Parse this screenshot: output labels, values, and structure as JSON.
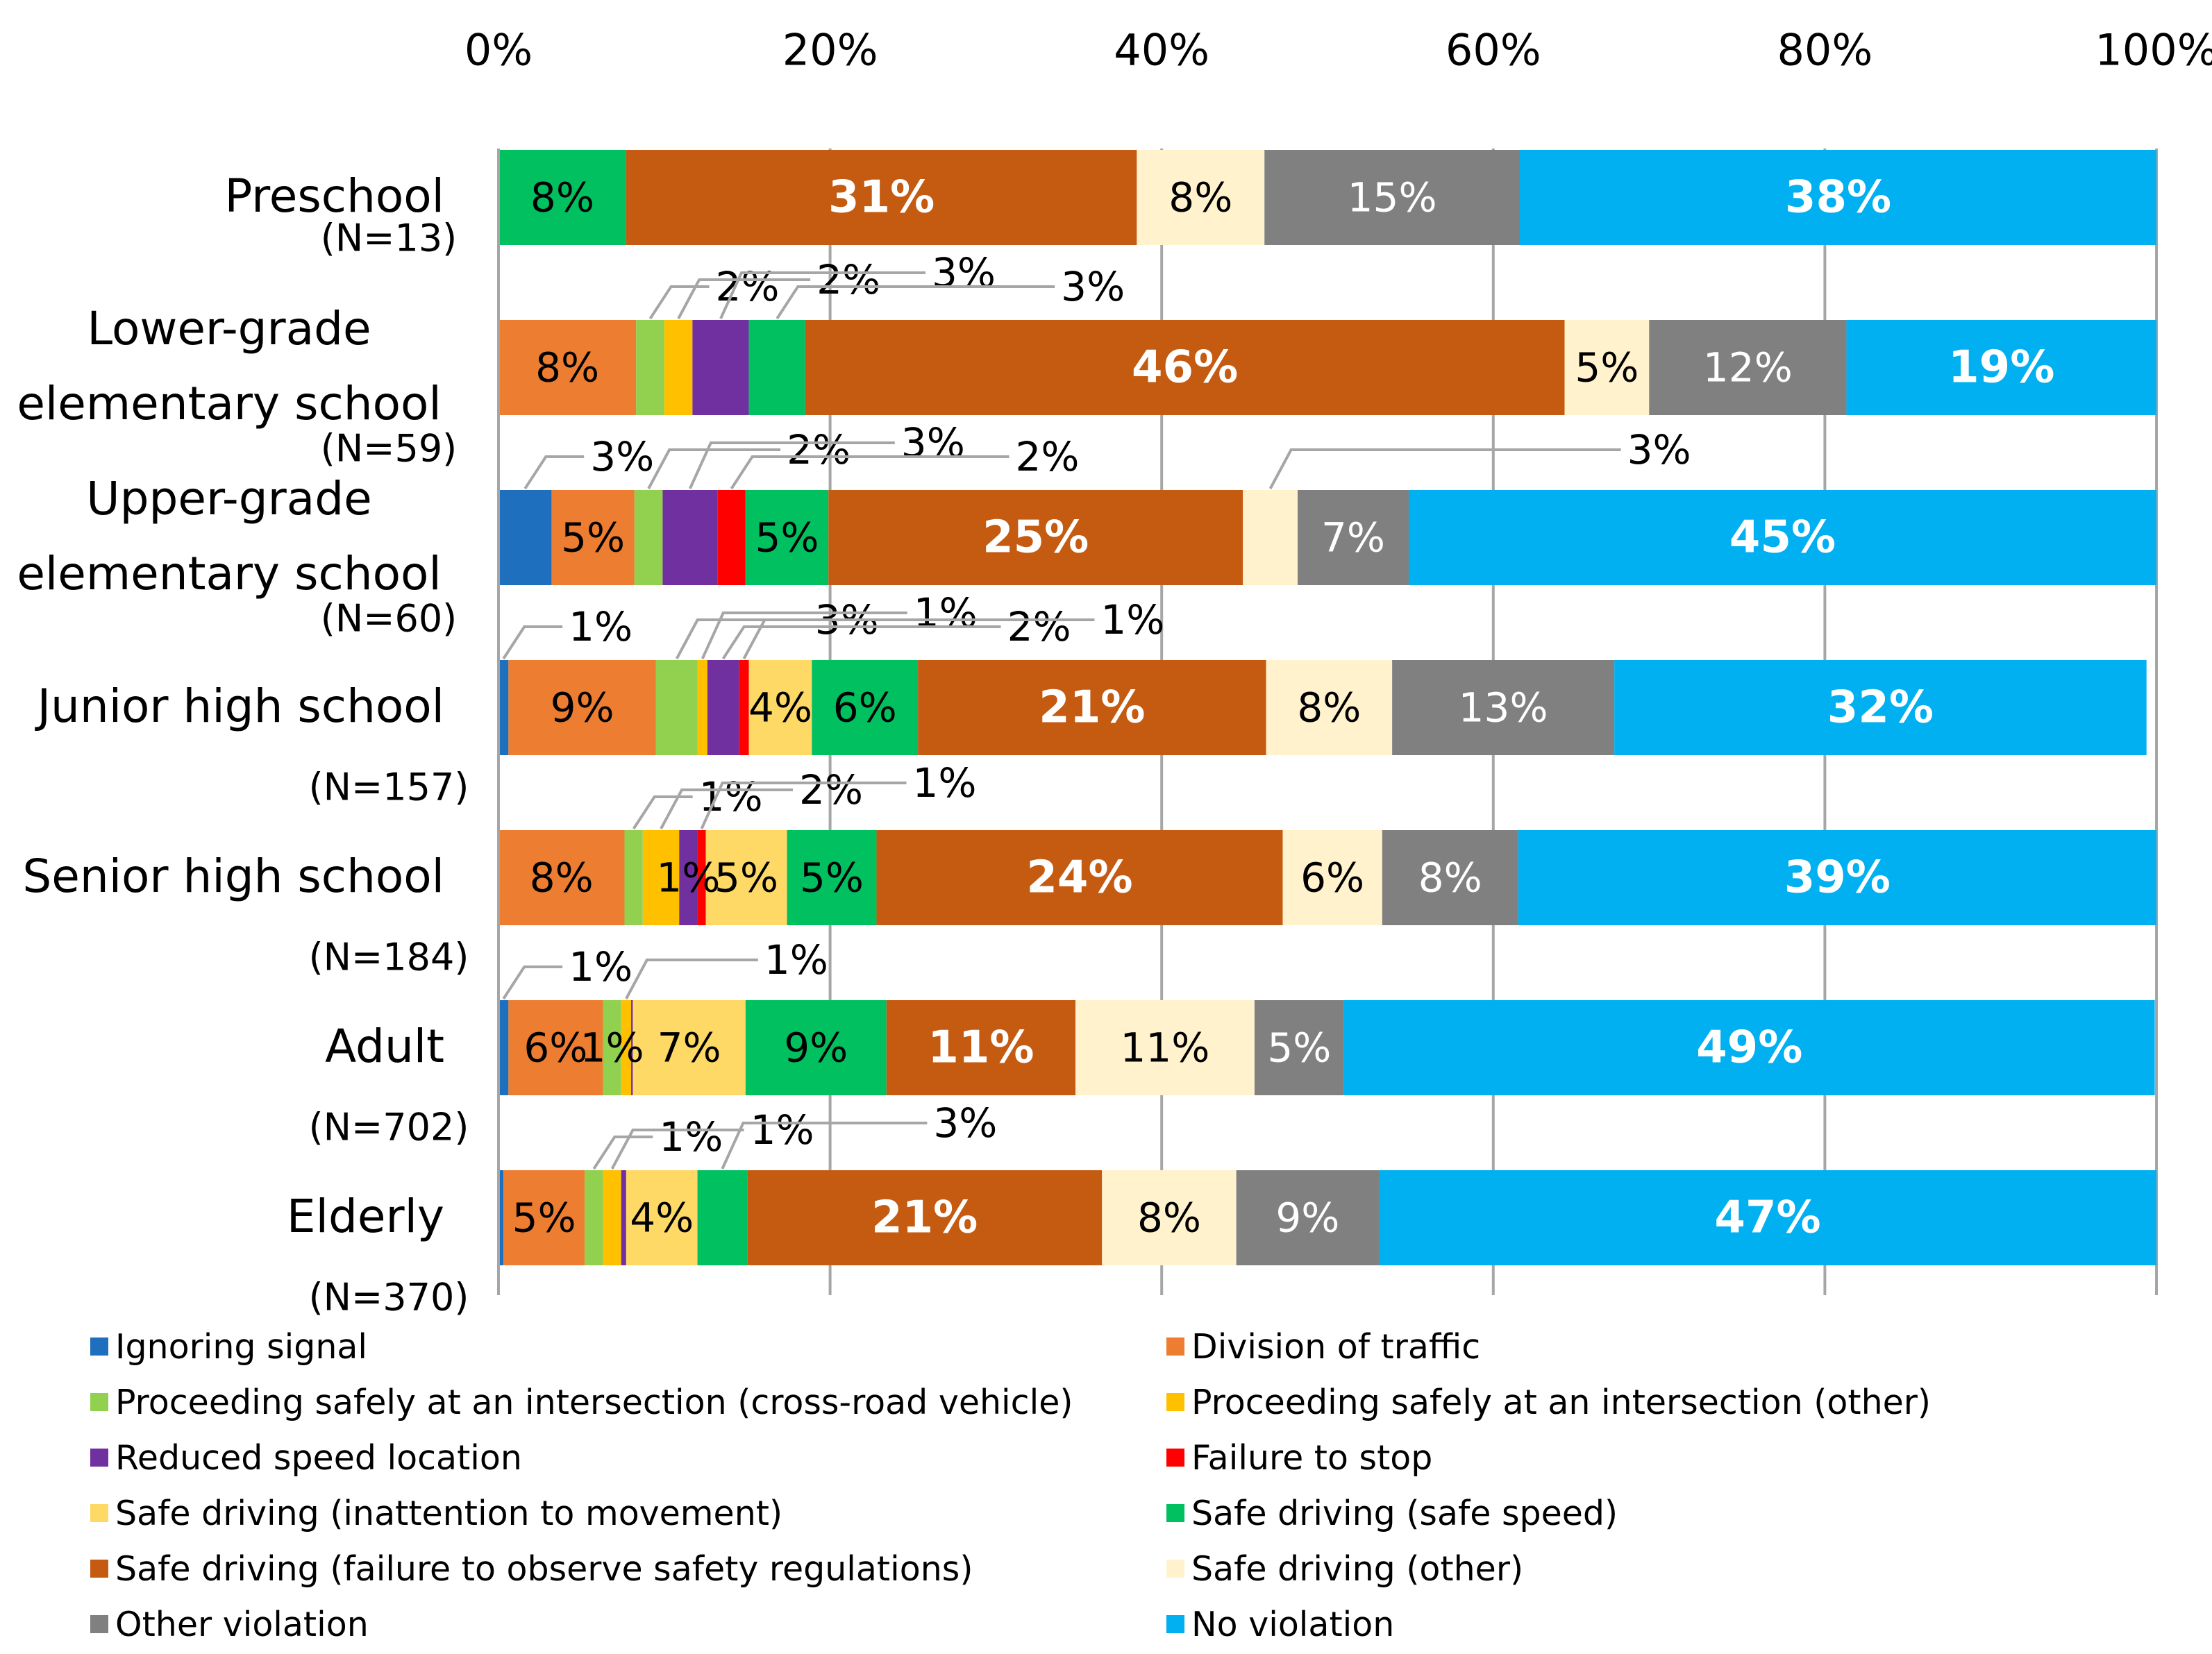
{
  "chart_data": {
    "type": "bar",
    "orientation": "horizontal",
    "stacked": "percent",
    "title": "",
    "xlabel": "",
    "ylabel": "",
    "xlim": [
      0,
      100
    ],
    "x_ticks": [
      "0%",
      "20%",
      "40%",
      "60%",
      "80%",
      "100%"
    ],
    "grid": true,
    "legend_position": "bottom",
    "categories": [
      {
        "name": "Preschool",
        "n": "(N=13)"
      },
      {
        "name": "Lower-grade elementary school",
        "n": "(N=59)"
      },
      {
        "name": "Upper-grade elementary school",
        "n": "(N=60)"
      },
      {
        "name": "Junior high school",
        "n": "(N=157)"
      },
      {
        "name": "Senior high school",
        "n": "(N=184)"
      },
      {
        "name": "Adult",
        "n": "(N=702)"
      },
      {
        "name": "Elderly",
        "n": "(N=370)"
      }
    ],
    "category_lines": [
      [
        "Preschool"
      ],
      [
        "Lower-grade",
        "elementary school"
      ],
      [
        "Upper-grade",
        "elementary school"
      ],
      [
        "Junior high school"
      ],
      [
        "Senior high school"
      ],
      [
        "Adult"
      ],
      [
        "Elderly"
      ]
    ],
    "series": [
      {
        "name": "Ignoring signal",
        "color": "#1F6FBF",
        "values": [
          0,
          0,
          3.2,
          0.6,
          0,
          0.6,
          0.3
        ],
        "labels": [
          "",
          "",
          "3%",
          "1%",
          "",
          "",
          ""
        ]
      },
      {
        "name": "Division of traffic",
        "color": "#ED7D31",
        "values": [
          0,
          8.3,
          5.0,
          8.9,
          7.6,
          5.7,
          4.9
        ],
        "labels": [
          "",
          "8%",
          "5%",
          "9%",
          "8%",
          "6%",
          "5%"
        ]
      },
      {
        "name": "Proceeding safely at an intersection (cross-road vehicle)",
        "color": "#92D050",
        "values": [
          0,
          1.7,
          1.7,
          2.5,
          1.1,
          1.1,
          1.1
        ],
        "labels": [
          "",
          "2%",
          "2%",
          "3%",
          "1%",
          "1%",
          "1%"
        ]
      },
      {
        "name": "Proceeding safely at an intersection (other)",
        "color": "#FFC000",
        "values": [
          0,
          1.7,
          0,
          0.6,
          2.2,
          0.6,
          1.1
        ],
        "labels": [
          "",
          "2%",
          "",
          "1%",
          "2%",
          "1%",
          "1%"
        ]
      },
      {
        "name": "Reduced speed location",
        "color": "#7030A0",
        "values": [
          0,
          3.4,
          3.3,
          1.9,
          1.1,
          0.1,
          0.3
        ],
        "labels": [
          "",
          "3%",
          "3%",
          "2%",
          "1%",
          "",
          ""
        ]
      },
      {
        "name": "Failure to stop",
        "color": "#FF0000",
        "values": [
          0,
          0,
          1.7,
          0.6,
          0.5,
          0,
          0
        ],
        "labels": [
          "",
          "",
          "2%",
          "1%",
          "1%",
          "",
          ""
        ]
      },
      {
        "name": "Safe driving (inattention to movement)",
        "color": "#FFD966",
        "values": [
          0,
          0,
          0,
          3.8,
          4.9,
          6.8,
          4.3
        ],
        "labels": [
          "",
          "",
          "",
          "4%",
          "5%",
          "7%",
          "4%"
        ]
      },
      {
        "name": "Safe driving (safe speed)",
        "color": "#00C060",
        "values": [
          7.7,
          3.4,
          5.0,
          6.4,
          5.4,
          8.5,
          3.0
        ],
        "labels": [
          "8%",
          "3%",
          "5%",
          "6%",
          "5%",
          "9%",
          "3%"
        ]
      },
      {
        "name": "Safe driving (failure to observe safety regulations)",
        "color": "#C55A11",
        "values": [
          30.8,
          45.8,
          25.0,
          21.0,
          24.5,
          11.4,
          21.4
        ],
        "labels": [
          "31%",
          "46%",
          "25%",
          "21%",
          "24%",
          "11%",
          "21%"
        ]
      },
      {
        "name": "Safe driving (other)",
        "color": "#FFF2CC",
        "values": [
          7.7,
          5.1,
          3.3,
          7.6,
          6.0,
          10.8,
          8.1
        ],
        "labels": [
          "8%",
          "5%",
          "3%",
          "8%",
          "6%",
          "11%",
          "8%"
        ]
      },
      {
        "name": "Other violation",
        "color": "#808080",
        "values": [
          15.4,
          11.9,
          6.7,
          13.4,
          8.2,
          5.4,
          8.6
        ],
        "labels": [
          "15%",
          "12%",
          "7%",
          "13%",
          "8%",
          "5%",
          "9%"
        ]
      },
      {
        "name": "No violation",
        "color": "#00B0F0",
        "values": [
          38.4,
          18.7,
          45.1,
          32.1,
          38.5,
          48.9,
          46.9
        ],
        "labels": [
          "38%",
          "19%",
          "45%",
          "32%",
          "39%",
          "49%",
          "47%"
        ]
      }
    ],
    "callouts": [
      {
        "row": 1,
        "series": 2,
        "text": "2%"
      },
      {
        "row": 1,
        "series": 3,
        "text": "2%"
      },
      {
        "row": 1,
        "series": 4,
        "text": "3%"
      },
      {
        "row": 1,
        "series": 7,
        "text": "3%"
      },
      {
        "row": 2,
        "series": 0,
        "text": "3%"
      },
      {
        "row": 2,
        "series": 2,
        "text": "2%"
      },
      {
        "row": 2,
        "series": 4,
        "text": "3%"
      },
      {
        "row": 2,
        "series": 5,
        "text": "2%"
      },
      {
        "row": 2,
        "series": 9,
        "text": "3%"
      },
      {
        "row": 3,
        "series": 0,
        "text": "1%"
      },
      {
        "row": 3,
        "series": 2,
        "text": "3%"
      },
      {
        "row": 3,
        "series": 3,
        "text": "1%"
      },
      {
        "row": 3,
        "series": 4,
        "text": "2%"
      },
      {
        "row": 3,
        "series": 5,
        "text": "1%"
      },
      {
        "row": 4,
        "series": 2,
        "text": "1%"
      },
      {
        "row": 4,
        "series": 3,
        "text": "2%"
      },
      {
        "row": 4,
        "series": 5,
        "text": "1%"
      },
      {
        "row": 5,
        "series": 0,
        "text": "1%"
      },
      {
        "row": 5,
        "series": 3,
        "text": "1%"
      },
      {
        "row": 6,
        "series": 2,
        "text": "1%"
      },
      {
        "row": 6,
        "series": 3,
        "text": "1%"
      },
      {
        "row": 6,
        "series": 7,
        "text": "3%"
      }
    ]
  }
}
